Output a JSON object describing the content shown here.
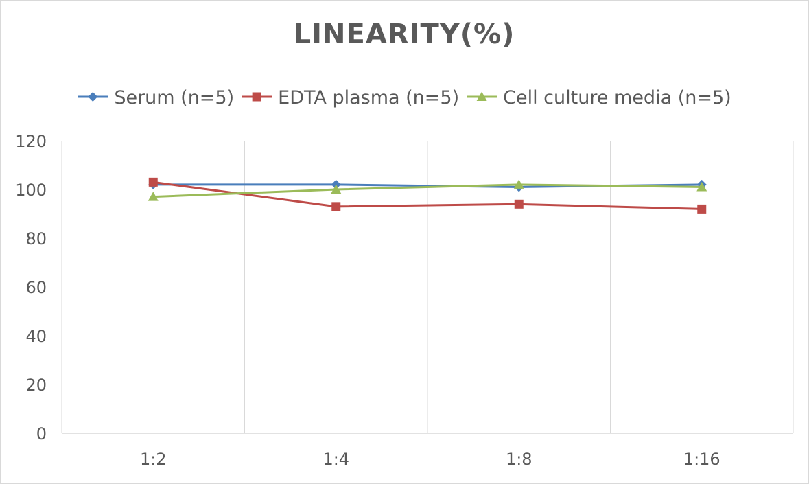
{
  "chart_data": {
    "type": "line",
    "title": "LINEARITY(%)",
    "xlabel": "",
    "ylabel": "",
    "categories": [
      "1:2",
      "1:4",
      "1:8",
      "1:16"
    ],
    "ylim": [
      0,
      120
    ],
    "yticks": [
      0,
      20,
      40,
      60,
      80,
      100,
      120
    ],
    "grid": "vertical",
    "legend_position": "top",
    "series": [
      {
        "name": "Serum (n=5)",
        "values": [
          102,
          102,
          101,
          102
        ],
        "color": "#4a7ebb",
        "marker": "diamond"
      },
      {
        "name": "EDTA plasma (n=5)",
        "values": [
          103,
          93,
          94,
          92
        ],
        "color": "#be4b48",
        "marker": "square"
      },
      {
        "name": "Cell culture media (n=5)",
        "values": [
          97,
          100,
          102,
          101
        ],
        "color": "#9bbb59",
        "marker": "triangle"
      }
    ]
  }
}
